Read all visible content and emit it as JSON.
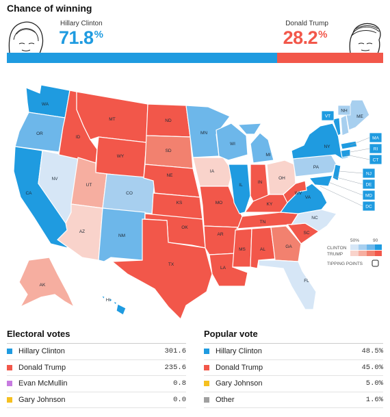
{
  "header": {
    "title": "Chance of winning",
    "candidates": [
      {
        "name": "Hillary Clinton",
        "chance": "71.8",
        "unit": "%",
        "color": "#1f9be0",
        "portrait": "hillary-clinton-portrait"
      },
      {
        "name": "Donald Trump",
        "chance": "28.2",
        "unit": "%",
        "color": "#f2574a",
        "portrait": "donald-trump-portrait"
      }
    ],
    "bar": {
      "clinton_fraction": 0.718,
      "trump_fraction": 0.282
    }
  },
  "map": {
    "colors": {
      "clinton_solid": "#1f9be0",
      "clinton_likely": "#6db7ea",
      "clinton_lean": "#a7cfef",
      "clinton_tilt": "#d6e6f6",
      "trump_tilt": "#f9d3cb",
      "trump_lean": "#f6aea0",
      "trump_likely": "#f2816f",
      "trump_solid": "#f2574a"
    },
    "states": [
      "WA",
      "OR",
      "CA",
      "NV",
      "ID",
      "MT",
      "WY",
      "UT",
      "AZ",
      "CO",
      "NM",
      "ND",
      "SD",
      "NE",
      "KS",
      "OK",
      "TX",
      "MN",
      "IA",
      "MO",
      "AR",
      "LA",
      "WI",
      "IL",
      "MI",
      "IN",
      "OH",
      "KY",
      "TN",
      "MS",
      "AL",
      "GA",
      "FL",
      "SC",
      "NC",
      "VA",
      "WV",
      "PA",
      "NY",
      "VT",
      "NH",
      "ME",
      "AK",
      "HI"
    ],
    "small_states": [
      "MA",
      "RI",
      "CT",
      "NJ",
      "DE",
      "MD",
      "DC"
    ],
    "legend": {
      "tick_low": "50%",
      "tick_high": "90",
      "clinton": "CLINTON",
      "trump": "TRUMP",
      "tipping": "TIPPING POINTS"
    }
  },
  "electoral": {
    "title": "Electoral votes",
    "rows": [
      {
        "name": "Hillary Clinton",
        "value": "301.6",
        "color": "#1f9be0"
      },
      {
        "name": "Donald Trump",
        "value": "235.6",
        "color": "#f2574a"
      },
      {
        "name": "Evan McMullin",
        "value": "0.8",
        "color": "#c77be0"
      },
      {
        "name": "Gary Johnson",
        "value": "0.0",
        "color": "#f5c020"
      }
    ]
  },
  "popular": {
    "title": "Popular vote",
    "rows": [
      {
        "name": "Hillary Clinton",
        "value": "48.5%",
        "color": "#1f9be0"
      },
      {
        "name": "Donald Trump",
        "value": "45.0%",
        "color": "#f2574a"
      },
      {
        "name": "Gary Johnson",
        "value": "5.0%",
        "color": "#f5c020"
      },
      {
        "name": "Other",
        "value": "1.6%",
        "color": "#a0a0a0"
      }
    ]
  }
}
